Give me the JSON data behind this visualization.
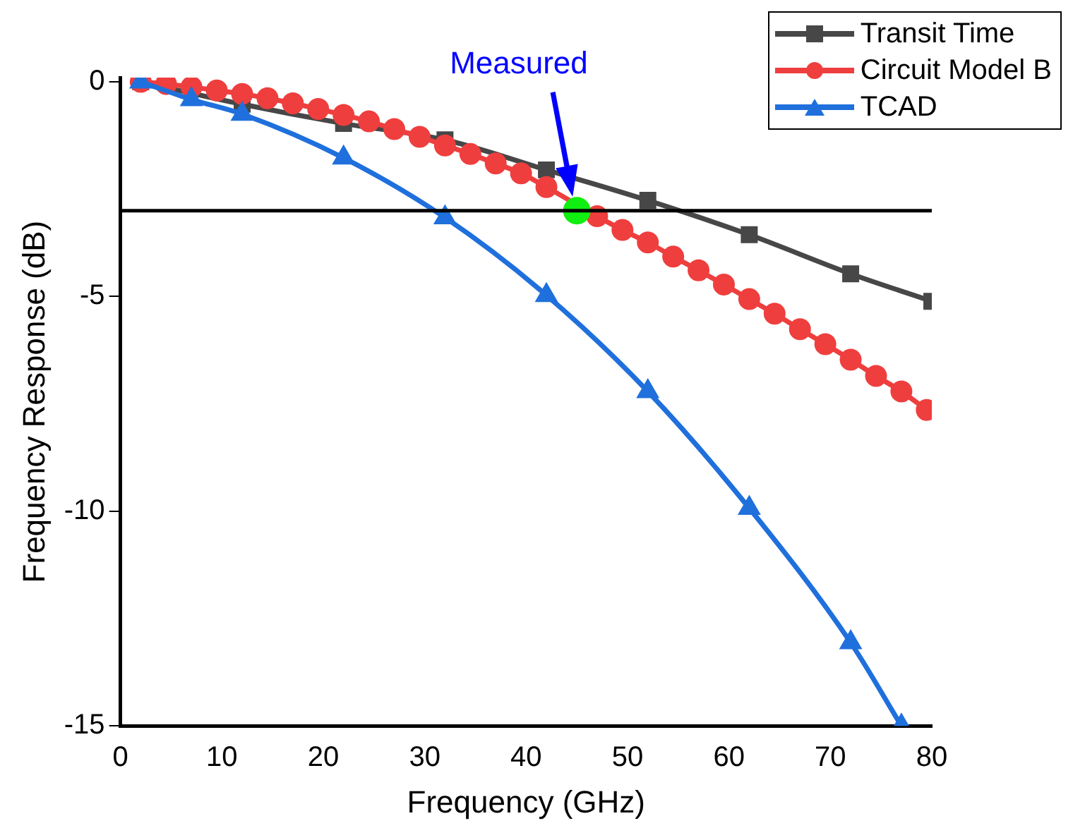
{
  "chart_data": {
    "type": "line",
    "xlabel": "Frequency (GHz)",
    "ylabel": "Frequency Response (dB)",
    "xlim": [
      0,
      80
    ],
    "xticks": [
      0,
      10,
      20,
      30,
      40,
      50,
      60,
      70,
      80
    ],
    "ylim": [
      -15,
      0.1
    ],
    "yticks": [
      -15,
      -10,
      -5,
      0
    ],
    "tick_labels": {
      "x": true,
      "y": true
    },
    "grid": false,
    "legend": "top right",
    "line_style": "solid",
    "ref_lines": [
      {
        "axis": "y",
        "value": -3,
        "color": "#000000"
      }
    ],
    "annotations": [
      "Measured"
    ],
    "series": [
      {
        "name": "Transit Time",
        "color": "#474747",
        "marker": "square",
        "x": [
          2,
          12,
          22,
          32,
          42,
          52,
          62,
          72,
          80
        ],
        "values": [
          0,
          -0.52,
          -0.97,
          -1.35,
          -2.05,
          -2.76,
          -3.56,
          -4.47,
          -5.11
        ]
      },
      {
        "name": "Circuit Model B",
        "color": "#ef3e3e",
        "marker": "circle",
        "x": [
          2,
          4.5,
          7,
          9.5,
          12,
          14.5,
          17,
          19.5,
          22,
          24.5,
          27,
          29.5,
          32,
          34.5,
          37,
          39.5,
          42,
          44.5,
          47,
          49.5,
          52,
          54.5,
          57,
          59.5,
          62,
          64.5,
          67,
          69.5,
          72,
          74.5,
          77,
          79.5
        ],
        "values": [
          0,
          -0.05,
          -0.12,
          -0.2,
          -0.28,
          -0.38,
          -0.5,
          -0.63,
          -0.77,
          -0.92,
          -1.1,
          -1.28,
          -1.48,
          -1.68,
          -1.9,
          -2.13,
          -2.45,
          null,
          -3.13,
          -3.45,
          -3.74,
          -4.07,
          -4.39,
          -4.72,
          -5.06,
          -5.4,
          -5.76,
          -6.11,
          -6.47,
          -6.85,
          -7.21,
          -7.64
        ]
      },
      {
        "name": "TCAD",
        "color": "#1f70dc",
        "marker": "triangle",
        "x": [
          2,
          7,
          12,
          22,
          32,
          42,
          52,
          62,
          72,
          77
        ],
        "values": [
          0,
          -0.41,
          -0.75,
          -1.77,
          -3.16,
          -4.97,
          -7.21,
          -9.93,
          -13.06,
          -15
        ]
      },
      {
        "type": "scatter",
        "color": "#11ee11",
        "marker": "circle",
        "x": [
          45
        ],
        "values": [
          -3
        ]
      }
    ]
  }
}
